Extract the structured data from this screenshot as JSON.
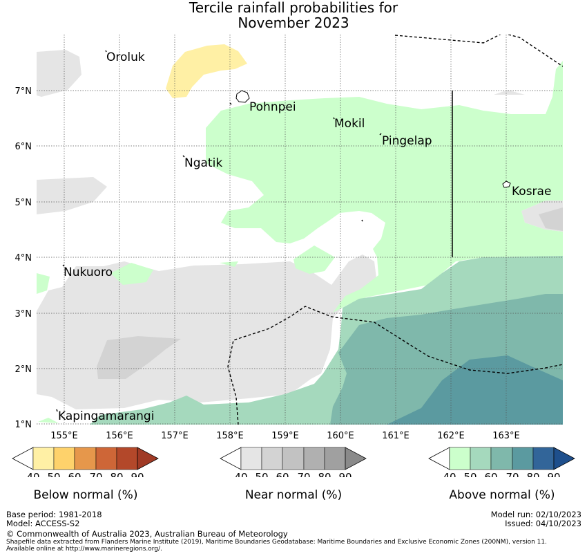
{
  "title_line1": "Tercile rainfall probabilities for",
  "title_line2": "November 2023",
  "map": {
    "lon_labels": [
      "155°E",
      "156°E",
      "157°E",
      "158°E",
      "159°E",
      "160°E",
      "161°E",
      "162°E",
      "163°E"
    ],
    "lat_labels": [
      "7°N",
      "6°N",
      "5°N",
      "4°N",
      "3°N",
      "2°N",
      "1°N"
    ],
    "places": [
      {
        "name": "Oroluk"
      },
      {
        "name": "Pohnpei"
      },
      {
        "name": "Mokil"
      },
      {
        "name": "Pingelap"
      },
      {
        "name": "Ngatik"
      },
      {
        "name": "Kosrae"
      },
      {
        "name": "Nukuoro"
      },
      {
        "name": "Kapingamarangi"
      }
    ]
  },
  "colorbars": [
    {
      "title": "Below normal (%)",
      "ticks": [
        "40",
        "50",
        "60",
        "70",
        "80",
        "90"
      ],
      "colors": [
        "#fff0a5",
        "#fed26b",
        "#e6974b",
        "#ce6637",
        "#b3482a"
      ],
      "arrow": "#a03a25"
    },
    {
      "title": "Near normal (%)",
      "ticks": [
        "40",
        "50",
        "60",
        "70",
        "80",
        "90"
      ],
      "colors": [
        "#e5e5e5",
        "#d3d3d3",
        "#c2c2c2",
        "#b0b0b0",
        "#a0a0a0"
      ],
      "arrow": "#8a8a8a"
    },
    {
      "title": "Above normal (%)",
      "ticks": [
        "40",
        "50",
        "60",
        "70",
        "80",
        "90"
      ],
      "colors": [
        "#ccffcc",
        "#a5d9bd",
        "#7fb8ab",
        "#5b9aa0",
        "#326599"
      ],
      "arrow": "#1e4f8c"
    }
  ],
  "footer": {
    "base_period": "Base period: 1981-2018",
    "model": "Model: ACCESS-S2",
    "model_run": "Model run: 02/10/2023",
    "issued": "Issued: 04/10/2023",
    "copyright": "© Commonwealth of Australia 2023, Australian Bureau of Meteorology",
    "shapefile": "Shapefile data extracted from Flanders Marine Institute (2019), Maritime Boundaries Geodatabase: Maritime Boundaries and Exclusive Economic Zones (200NM), version 11.",
    "available": "Available online at http://www.marineregions.org/."
  }
}
